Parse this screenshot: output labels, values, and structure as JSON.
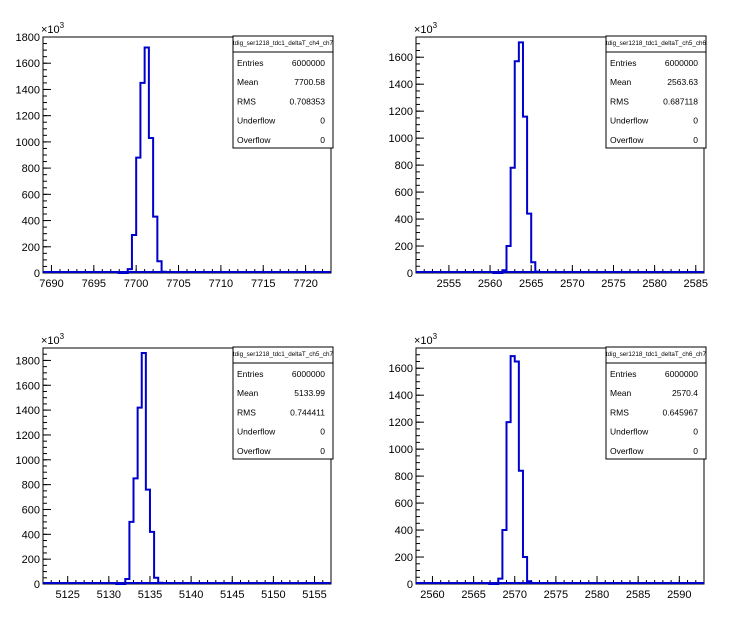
{
  "chart_data": [
    {
      "type": "histogram",
      "stats_box": {
        "title": "tdig_ser1218_tdc1_deltaT_ch4_ch7",
        "rows": [
          {
            "label": "Entries",
            "value": "6000000"
          },
          {
            "label": "Mean",
            "value": "7700.58"
          },
          {
            "label": "RMS",
            "value": "0.708353"
          },
          {
            "label": "Underflow",
            "value": "0"
          },
          {
            "label": "Overflow",
            "value": "0"
          }
        ]
      },
      "xlim": [
        7689,
        7723
      ],
      "x_ticks": [
        7690,
        7695,
        7700,
        7705,
        7710,
        7715,
        7720
      ],
      "ylim": [
        0,
        1800
      ],
      "y_ticks": [
        0,
        200,
        400,
        600,
        800,
        1000,
        1200,
        1400,
        1600,
        1800
      ],
      "y_exponent_label": "×10",
      "y_exponent_power": "3",
      "bin_width": 0.5,
      "bins": [
        {
          "x": 7699.0,
          "y": 30
        },
        {
          "x": 7699.5,
          "y": 290
        },
        {
          "x": 7700.0,
          "y": 880
        },
        {
          "x": 7700.5,
          "y": 1450
        },
        {
          "x": 7701.0,
          "y": 1720
        },
        {
          "x": 7701.5,
          "y": 1030
        },
        {
          "x": 7702.0,
          "y": 430
        },
        {
          "x": 7702.5,
          "y": 90
        },
        {
          "x": 7703.0,
          "y": 10
        }
      ]
    },
    {
      "type": "histogram",
      "stats_box": {
        "title": "tdig_ser1218_tdc1_deltaT_ch5_ch6",
        "rows": [
          {
            "label": "Entries",
            "value": "6000000"
          },
          {
            "label": "Mean",
            "value": "2563.63"
          },
          {
            "label": "RMS",
            "value": "0.687118"
          },
          {
            "label": "Underflow",
            "value": "0"
          },
          {
            "label": "Overflow",
            "value": "0"
          }
        ]
      },
      "xlim": [
        2551,
        2586
      ],
      "x_ticks": [
        2555,
        2560,
        2565,
        2570,
        2575,
        2580,
        2585
      ],
      "ylim": [
        0,
        1750
      ],
      "y_ticks": [
        0,
        200,
        400,
        600,
        800,
        1000,
        1200,
        1400,
        1600
      ],
      "y_exponent_label": "×10",
      "y_exponent_power": "3",
      "bin_width": 0.5,
      "bins": [
        {
          "x": 2561.5,
          "y": 20
        },
        {
          "x": 2562.0,
          "y": 200
        },
        {
          "x": 2562.5,
          "y": 780
        },
        {
          "x": 2563.0,
          "y": 1570
        },
        {
          "x": 2563.5,
          "y": 1710
        },
        {
          "x": 2564.0,
          "y": 1160
        },
        {
          "x": 2564.5,
          "y": 440
        },
        {
          "x": 2565.0,
          "y": 80
        },
        {
          "x": 2565.5,
          "y": 10
        }
      ]
    },
    {
      "type": "histogram",
      "stats_box": {
        "title": "tdig_ser1218_tdc1_deltaT_ch5_ch7",
        "rows": [
          {
            "label": "Entries",
            "value": "6000000"
          },
          {
            "label": "Mean",
            "value": "5133.99"
          },
          {
            "label": "RMS",
            "value": "0.744411"
          },
          {
            "label": "Underflow",
            "value": "0"
          },
          {
            "label": "Overflow",
            "value": "0"
          }
        ]
      },
      "xlim": [
        5122,
        5157
      ],
      "x_ticks": [
        5125,
        5130,
        5135,
        5140,
        5145,
        5150,
        5155
      ],
      "ylim": [
        0,
        1900
      ],
      "y_ticks": [
        0,
        200,
        400,
        600,
        800,
        1000,
        1200,
        1400,
        1600,
        1800
      ],
      "y_exponent_label": "×10",
      "y_exponent_power": "3",
      "bin_width": 0.5,
      "bins": [
        {
          "x": 5132.0,
          "y": 40
        },
        {
          "x": 5132.5,
          "y": 500
        },
        {
          "x": 5133.0,
          "y": 850
        },
        {
          "x": 5133.5,
          "y": 1420
        },
        {
          "x": 5134.0,
          "y": 1860
        },
        {
          "x": 5134.5,
          "y": 760
        },
        {
          "x": 5135.0,
          "y": 420
        },
        {
          "x": 5135.5,
          "y": 50
        },
        {
          "x": 5136.0,
          "y": 10
        }
      ]
    },
    {
      "type": "histogram",
      "stats_box": {
        "title": "tdig_ser1218_tdc1_deltaT_ch6_ch7",
        "rows": [
          {
            "label": "Entries",
            "value": "6000000"
          },
          {
            "label": "Mean",
            "value": "2570.4"
          },
          {
            "label": "RMS",
            "value": "0.645967"
          },
          {
            "label": "Underflow",
            "value": "0"
          },
          {
            "label": "Overflow",
            "value": "0"
          }
        ]
      },
      "xlim": [
        2558,
        2593
      ],
      "x_ticks": [
        2560,
        2565,
        2570,
        2575,
        2580,
        2585,
        2590
      ],
      "ylim": [
        0,
        1750
      ],
      "y_ticks": [
        0,
        200,
        400,
        600,
        800,
        1000,
        1200,
        1400,
        1600
      ],
      "y_exponent_label": "×10",
      "y_exponent_power": "3",
      "bin_width": 0.5,
      "bins": [
        {
          "x": 2568.0,
          "y": 40
        },
        {
          "x": 2568.5,
          "y": 400
        },
        {
          "x": 2569.0,
          "y": 1200
        },
        {
          "x": 2569.5,
          "y": 1690
        },
        {
          "x": 2570.0,
          "y": 1650
        },
        {
          "x": 2570.5,
          "y": 840
        },
        {
          "x": 2571.0,
          "y": 200
        },
        {
          "x": 2571.5,
          "y": 20
        }
      ]
    }
  ],
  "colors": {
    "histogram_line": "#0000cc",
    "frame": "#000000",
    "background": "#ffffff"
  }
}
